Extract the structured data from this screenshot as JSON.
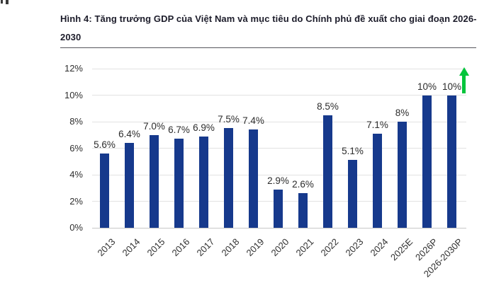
{
  "chart_data": {
    "type": "bar",
    "title": "Hình 4: Tăng trưởng GDP của Việt Nam và mục tiêu do Chính phủ đề xuất cho giai đoạn 2026-2030",
    "categories": [
      "2013",
      "2014",
      "2015",
      "2016",
      "2017",
      "2018",
      "2019",
      "2020",
      "2021",
      "2022",
      "2023",
      "2024",
      "2025E",
      "2026P",
      "2026-2030P"
    ],
    "values": [
      5.6,
      6.4,
      7.0,
      6.7,
      6.9,
      7.5,
      7.4,
      2.9,
      2.6,
      8.5,
      5.1,
      7.1,
      8,
      10,
      10
    ],
    "value_labels": [
      "5.6%",
      "6.4%",
      "7.0%",
      "6.7%",
      "6.9%",
      "7.5%",
      "7.4%",
      "2.9%",
      "2.6%",
      "8.5%",
      "5.1%",
      "7.1%",
      "8%",
      "10%",
      "10%"
    ],
    "xlabel": "",
    "ylabel": "",
    "ylim": [
      0,
      12
    ],
    "y_tick_values": [
      0,
      2,
      4,
      6,
      8,
      10,
      12
    ],
    "y_tick_labels": [
      "0%",
      "2%",
      "4%",
      "6%",
      "8%",
      "10%",
      "12%"
    ],
    "grid": true,
    "legend_position": "none",
    "bar_color": "#16398c",
    "annotation": {
      "icon": "up-arrow",
      "color": "#04c53c",
      "position": "right-of-last-bar"
    }
  }
}
